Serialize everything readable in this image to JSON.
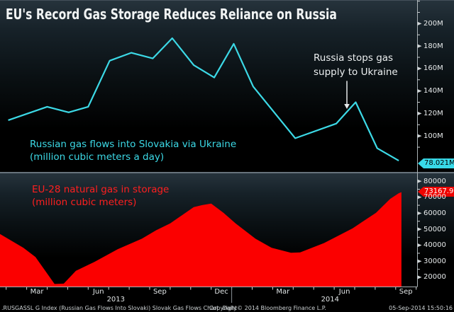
{
  "header": {
    "title": "EU's Record Gas Storage Reduces Reliance on Russia"
  },
  "top_chart": {
    "legend_line1": "Russian gas flows into Slovakia via Ukraine",
    "legend_line2": "(million cubic meters a day)",
    "annotation_line1": "Russia stops gas",
    "annotation_line2": "supply to Ukraine",
    "last_value": "78.021M"
  },
  "bottom_chart": {
    "legend_line1": "EU-28 natural gas in storage",
    "legend_line2": "(million cubic meters)",
    "last_value": "73167.96"
  },
  "footer": {
    "security_info": ".RUSGASSL G Index (Russian Gas Flows Into Slovaki) Slovak Gas Flows Chart  Daily",
    "copyright": "Copyright© 2014 Bloomberg Finance L.P.",
    "datetime": "05-Sep-2014 15:50:16"
  },
  "colors": {
    "line_cyan": "#3cd9e6",
    "area_red": "#fb0000",
    "badge_cyan": "#38d9e8",
    "badge_red": "#ee0400",
    "axis": "#aab2b6",
    "tick": "#cfd4d6",
    "annotation_arrow": "#e6e9ea"
  },
  "x_axis": {
    "unit": "months since Jan-2013 (decimal)",
    "month_boundary_ticks": [
      1,
      2,
      3,
      4,
      5,
      6,
      7,
      8,
      9,
      10,
      11,
      12,
      13,
      14,
      15,
      16,
      17,
      18,
      19,
      20,
      21
    ],
    "quarter_labels": [
      {
        "m": 2.5,
        "label": "Mar"
      },
      {
        "m": 5.5,
        "label": "Jun"
      },
      {
        "m": 8.5,
        "label": "Sep"
      },
      {
        "m": 11.5,
        "label": "Dec"
      },
      {
        "m": 14.5,
        "label": "Mar"
      },
      {
        "m": 17.5,
        "label": "Jun"
      },
      {
        "m": 20.5,
        "label": "Sep"
      }
    ],
    "year_labels": [
      {
        "m": 6.35,
        "label": "2013"
      },
      {
        "m": 16.8,
        "label": "2014"
      }
    ],
    "year_divider_m": 12
  },
  "chart_data": [
    {
      "type": "line",
      "title": "Russian gas flows into Slovakia via Ukraine",
      "ylabel": "million cubic meters a day",
      "legend_position": "bottom-left inside plot",
      "grid": false,
      "color": "#3cd9e6",
      "x": [
        1.1,
        3.0,
        4.05,
        5.0,
        6.05,
        7.1,
        8.15,
        9.1,
        10.15,
        11.15,
        12.1,
        13.05,
        15.1,
        17.1,
        17.6,
        18.05,
        19.1,
        20.15
      ],
      "y": [
        114,
        126,
        121,
        126,
        167,
        174,
        169,
        187,
        163,
        152,
        182,
        144,
        98,
        111,
        121,
        130,
        89,
        78.021
      ],
      "y_axis": {
        "range": [
          68,
          221
        ],
        "major_ticks": [
          100,
          120,
          140,
          160,
          180,
          200
        ],
        "major_labels": [
          "100M",
          "120M",
          "140M",
          "160M",
          "180M",
          "200M"
        ],
        "minor_ticks": [
          90,
          110,
          130,
          150,
          170,
          190,
          210,
          220
        ]
      },
      "last_value": 78.021,
      "last_value_label": "78.021M",
      "annotation": {
        "line1": "Russia stops gas",
        "line2": "supply to Ukraine",
        "arrow_month": 17.62,
        "arrow_from_value": 149,
        "arrow_tip_value": 124
      }
    },
    {
      "type": "area",
      "title": "EU-28 natural gas in storage",
      "ylabel": "million cubic meters",
      "legend_position": "top-left inside plot",
      "grid": false,
      "color": "#fb0000",
      "x": [
        0.7,
        1.84,
        2.43,
        3.36,
        3.81,
        4.4,
        5.3,
        6.44,
        7.62,
        8.31,
        9.0,
        10.15,
        10.56,
        11.0,
        11.6,
        12.19,
        13.16,
        13.95,
        14.89,
        15.34,
        16.51,
        17.9,
        19.04,
        19.73,
        20.15,
        20.28
      ],
      "y": [
        47000,
        38400,
        32700,
        15800,
        16000,
        24000,
        29600,
        37500,
        44100,
        49350,
        53700,
        63800,
        65100,
        66000,
        60300,
        53700,
        44100,
        38400,
        35300,
        35500,
        41400,
        50600,
        60300,
        69000,
        72500,
        73168
      ],
      "y_axis": {
        "range": [
          14200,
          84500
        ],
        "major_ticks": [
          20000,
          30000,
          40000,
          50000,
          60000,
          70000,
          80000
        ],
        "major_labels": [
          "20000",
          "30000",
          "40000",
          "50000",
          "60000",
          "70000",
          "80000"
        ],
        "minor_ticks": [
          25000,
          35000,
          45000,
          55000,
          65000,
          75000
        ]
      },
      "last_value": 73167.96,
      "last_value_label": "73167.96"
    }
  ]
}
